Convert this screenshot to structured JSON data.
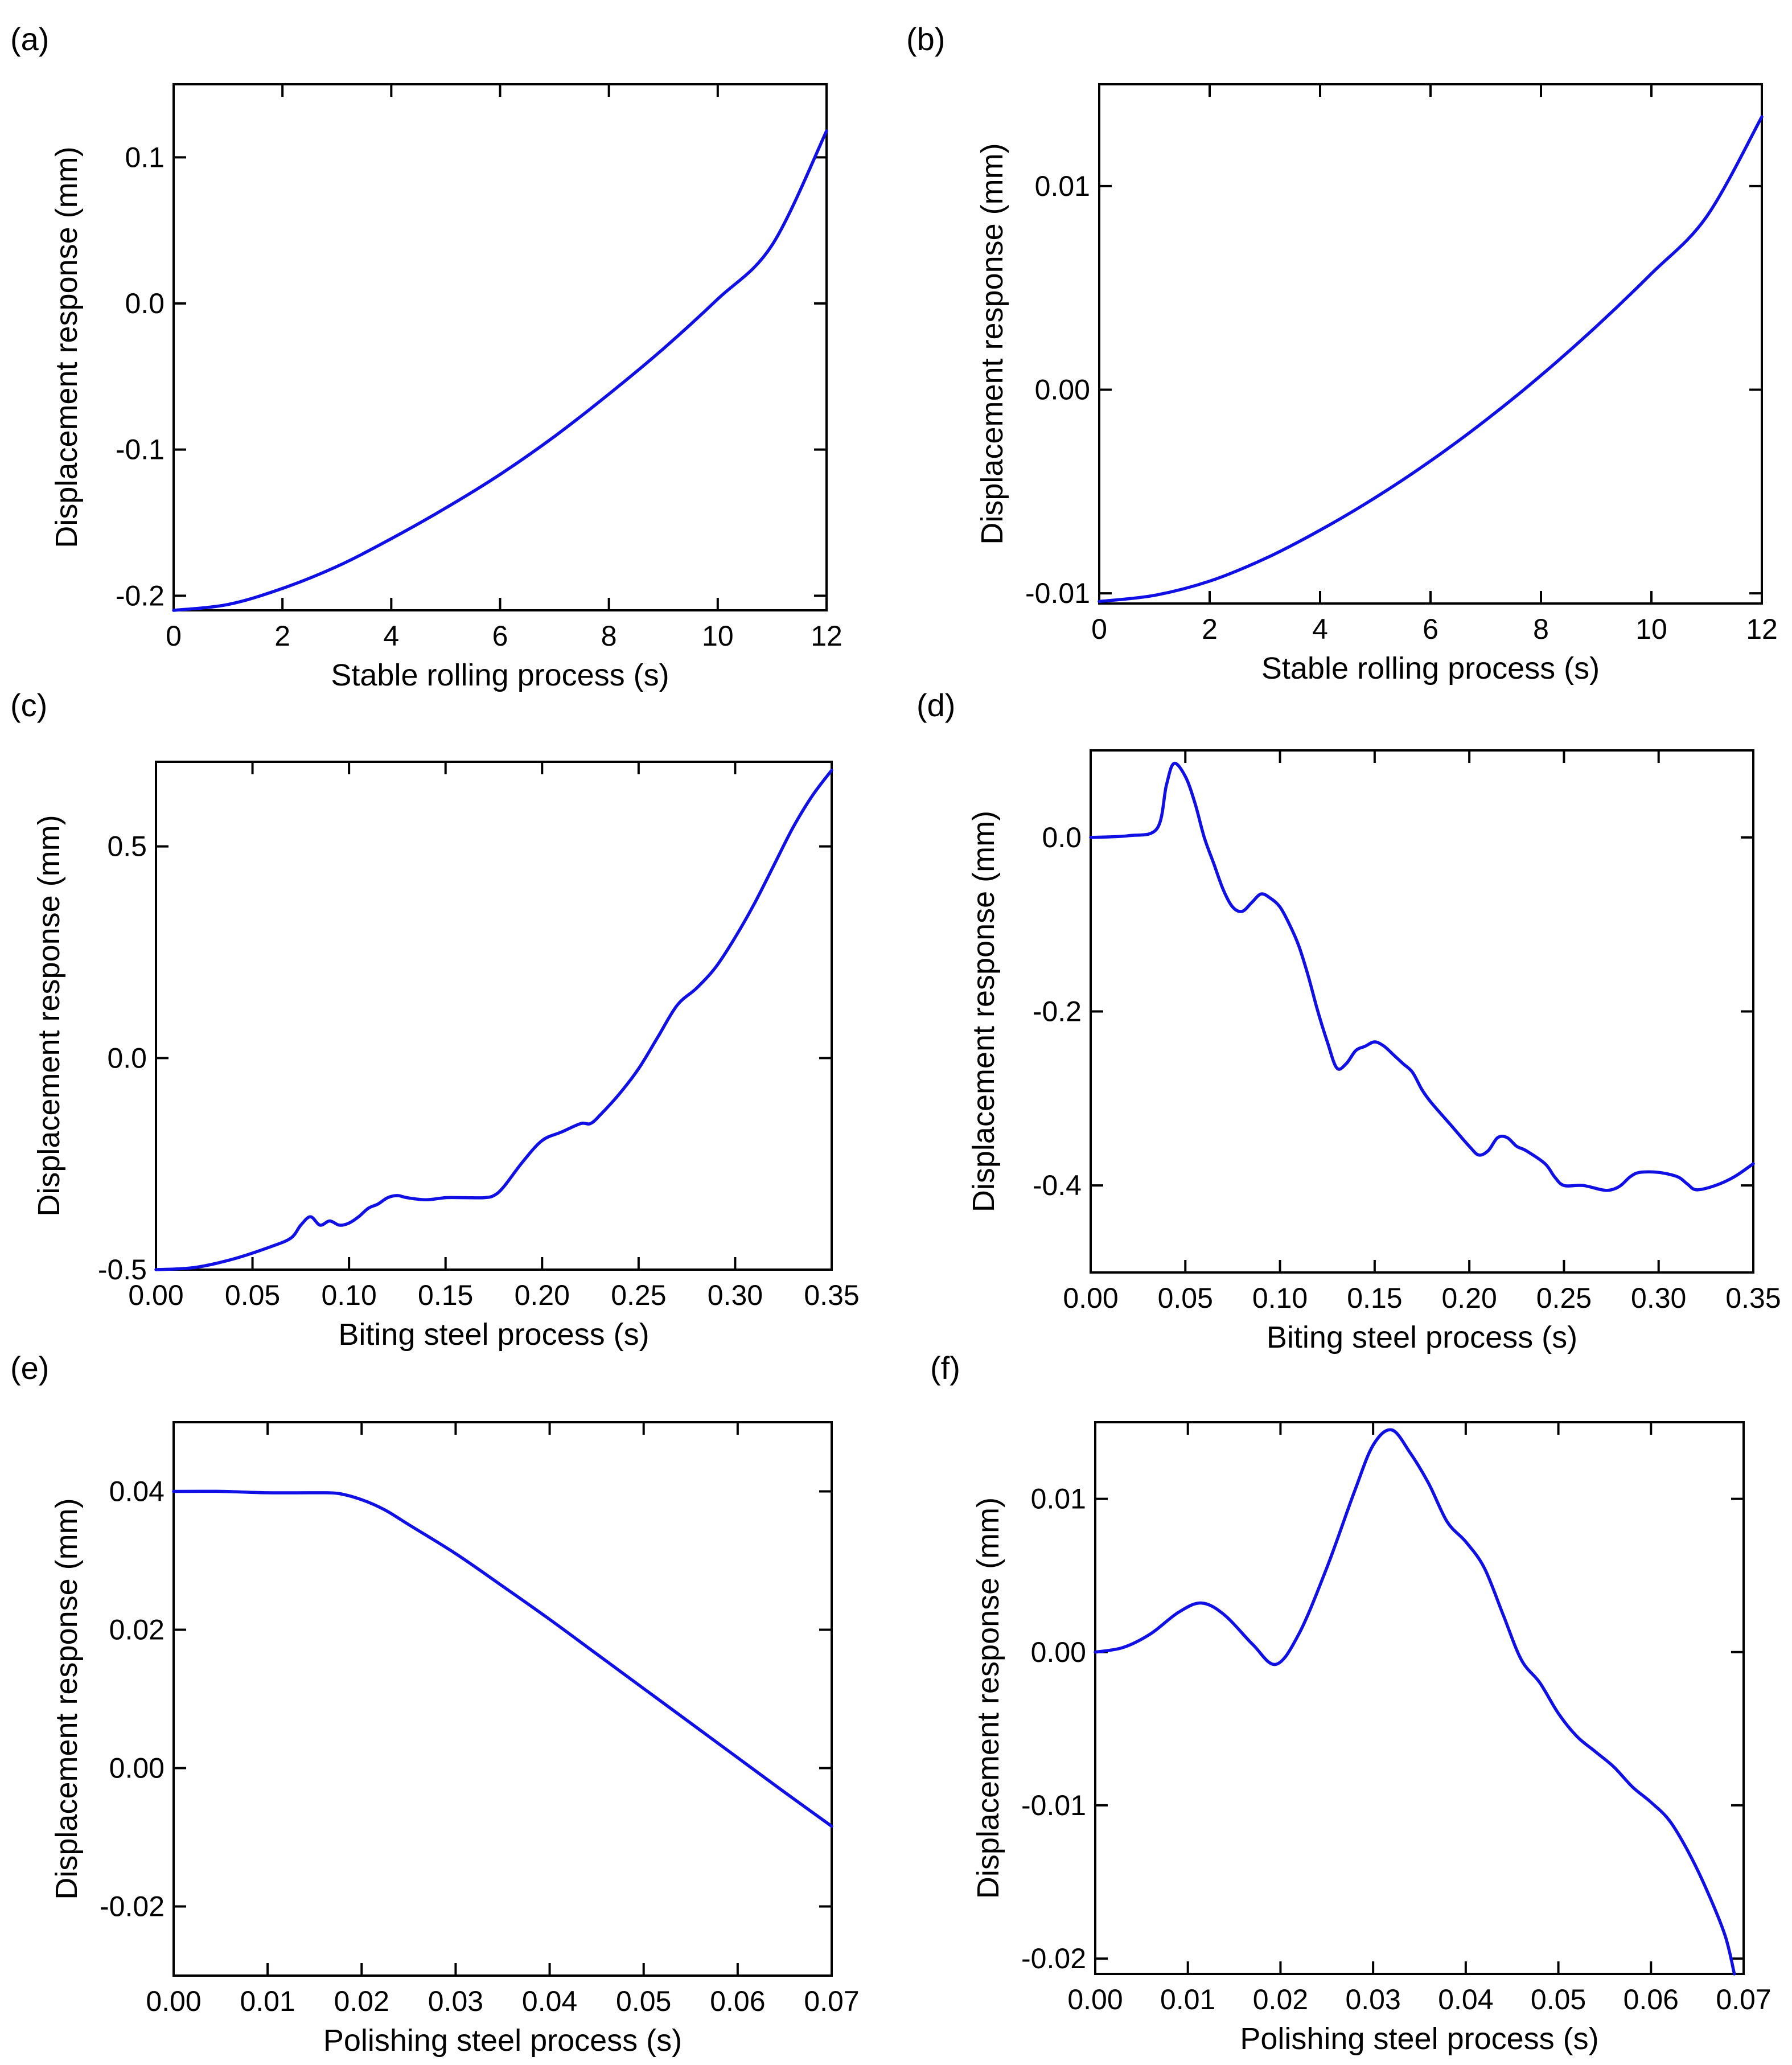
{
  "colors": {
    "series": "#1010e6",
    "axis": "#000000",
    "background": "#ffffff"
  },
  "chart_data": [
    {
      "panel": "(a)",
      "type": "line",
      "xlabel": "Stable rolling process (s)",
      "ylabel": "Displacement response (mm)",
      "xlim": [
        0,
        12
      ],
      "ylim": [
        -0.21,
        0.15
      ],
      "xticks": [
        0,
        2,
        4,
        6,
        8,
        10,
        12
      ],
      "xtick_labels": [
        "0",
        "2",
        "4",
        "6",
        "8",
        "10",
        "12"
      ],
      "yticks": [
        -0.2,
        -0.1,
        0.0,
        0.1
      ],
      "ytick_labels": [
        "-0.2",
        "-0.1",
        "0.0",
        "0.1"
      ],
      "series": [
        {
          "name": "displacement",
          "x": [
            0,
            1,
            2,
            3,
            4,
            5,
            6,
            7,
            8,
            9,
            10,
            11,
            12
          ],
          "y": [
            -0.21,
            -0.206,
            -0.195,
            -0.18,
            -0.161,
            -0.14,
            -0.117,
            -0.091,
            -0.062,
            -0.031,
            0.003,
            0.04,
            0.118
          ]
        }
      ]
    },
    {
      "panel": "(b)",
      "type": "line",
      "xlabel": "Stable rolling process (s)",
      "ylabel": "Displacement response (mm)",
      "xlim": [
        0,
        12
      ],
      "ylim": [
        -0.0105,
        0.015
      ],
      "xticks": [
        0,
        2,
        4,
        6,
        8,
        10,
        12
      ],
      "xtick_labels": [
        "0",
        "2",
        "4",
        "6",
        "8",
        "10",
        "12"
      ],
      "yticks": [
        -0.01,
        0.0,
        0.01
      ],
      "ytick_labels": [
        "-0.01",
        "0.00",
        "0.01"
      ],
      "series": [
        {
          "name": "displacement",
          "x": [
            0,
            1,
            2,
            3,
            4,
            5,
            6,
            7,
            8,
            9,
            10,
            11,
            12
          ],
          "y": [
            -0.0104,
            -0.0101,
            -0.0094,
            -0.0083,
            -0.0069,
            -0.0053,
            -0.0035,
            -0.0015,
            0.0007,
            0.0031,
            0.0057,
            0.0085,
            0.0134
          ]
        }
      ]
    },
    {
      "panel": "(c)",
      "type": "line",
      "xlabel": "Biting steel process (s)",
      "ylabel": "Displacement response (mm)",
      "xlim": [
        0,
        0.35
      ],
      "ylim": [
        -0.5,
        0.7
      ],
      "xticks": [
        0,
        0.05,
        0.1,
        0.15,
        0.2,
        0.25,
        0.3,
        0.35
      ],
      "xtick_labels": [
        "0.00",
        "0.05",
        "0.10",
        "0.15",
        "0.20",
        "0.25",
        "0.30",
        "0.35"
      ],
      "yticks": [
        -0.5,
        0.0,
        0.5
      ],
      "ytick_labels": [
        "-0.5",
        "0.0",
        "0.5"
      ],
      "series": [
        {
          "name": "displacement",
          "x": [
            0,
            0.02,
            0.04,
            0.06,
            0.07,
            0.075,
            0.08,
            0.085,
            0.09,
            0.095,
            0.1,
            0.105,
            0.11,
            0.115,
            0.12,
            0.125,
            0.13,
            0.14,
            0.15,
            0.16,
            0.17,
            0.175,
            0.18,
            0.19,
            0.2,
            0.21,
            0.22,
            0.225,
            0.23,
            0.24,
            0.25,
            0.26,
            0.27,
            0.28,
            0.29,
            0.3,
            0.31,
            0.32,
            0.33,
            0.34,
            0.35
          ],
          "y": [
            -0.5,
            -0.495,
            -0.475,
            -0.445,
            -0.425,
            -0.395,
            -0.375,
            -0.395,
            -0.385,
            -0.395,
            -0.39,
            -0.375,
            -0.355,
            -0.345,
            -0.33,
            -0.325,
            -0.33,
            -0.335,
            -0.33,
            -0.33,
            -0.33,
            -0.325,
            -0.305,
            -0.245,
            -0.195,
            -0.175,
            -0.155,
            -0.155,
            -0.135,
            -0.085,
            -0.025,
            0.05,
            0.125,
            0.165,
            0.215,
            0.285,
            0.365,
            0.455,
            0.545,
            0.62,
            0.68
          ]
        }
      ]
    },
    {
      "panel": "(d)",
      "type": "line",
      "xlabel": "Biting steel process (s)",
      "ylabel": "Displacement response (mm)",
      "xlim": [
        0,
        0.35
      ],
      "ylim": [
        -0.5,
        0.1
      ],
      "xticks": [
        0,
        0.05,
        0.1,
        0.15,
        0.2,
        0.25,
        0.3,
        0.35
      ],
      "xtick_labels": [
        "0.00",
        "0.05",
        "0.10",
        "0.15",
        "0.20",
        "0.25",
        "0.30",
        "0.35"
      ],
      "yticks": [
        -0.4,
        -0.2,
        0.0
      ],
      "ytick_labels": [
        "-0.4",
        "-0.2",
        "0.0"
      ],
      "series": [
        {
          "name": "displacement",
          "x": [
            0,
            0.02,
            0.035,
            0.04,
            0.044,
            0.05,
            0.055,
            0.06,
            0.065,
            0.07,
            0.075,
            0.08,
            0.085,
            0.09,
            0.095,
            0.1,
            0.105,
            0.11,
            0.115,
            0.12,
            0.125,
            0.13,
            0.135,
            0.14,
            0.145,
            0.15,
            0.155,
            0.16,
            0.165,
            0.17,
            0.175,
            0.18,
            0.19,
            0.2,
            0.205,
            0.21,
            0.215,
            0.22,
            0.225,
            0.23,
            0.24,
            0.245,
            0.25,
            0.26,
            0.27,
            0.275,
            0.28,
            0.285,
            0.29,
            0.3,
            0.31,
            0.315,
            0.32,
            0.33,
            0.34,
            0.35
          ],
          "y": [
            0.0,
            0.002,
            0.01,
            0.06,
            0.085,
            0.07,
            0.04,
            0.0,
            -0.03,
            -0.06,
            -0.08,
            -0.085,
            -0.075,
            -0.065,
            -0.07,
            -0.08,
            -0.1,
            -0.125,
            -0.16,
            -0.2,
            -0.235,
            -0.265,
            -0.26,
            -0.245,
            -0.24,
            -0.235,
            -0.24,
            -0.25,
            -0.26,
            -0.27,
            -0.29,
            -0.305,
            -0.33,
            -0.355,
            -0.365,
            -0.36,
            -0.345,
            -0.345,
            -0.355,
            -0.36,
            -0.375,
            -0.39,
            -0.4,
            -0.4,
            -0.405,
            -0.405,
            -0.4,
            -0.39,
            -0.385,
            -0.385,
            -0.39,
            -0.398,
            -0.405,
            -0.4,
            -0.39,
            -0.375
          ]
        }
      ]
    },
    {
      "panel": "(e)",
      "type": "line",
      "xlabel": "Polishing steel process (s)",
      "ylabel": "Displacement response (mm)",
      "xlim": [
        0,
        0.07
      ],
      "ylim": [
        -0.03,
        0.05
      ],
      "xticks": [
        0,
        0.01,
        0.02,
        0.03,
        0.04,
        0.05,
        0.06,
        0.07
      ],
      "xtick_labels": [
        "0.00",
        "0.01",
        "0.02",
        "0.03",
        "0.04",
        "0.05",
        "0.06",
        "0.07"
      ],
      "yticks": [
        -0.02,
        0.0,
        0.02,
        0.04
      ],
      "ytick_labels": [
        "-0.02",
        "0.00",
        "0.02",
        "0.04"
      ],
      "series": [
        {
          "name": "displacement",
          "x": [
            0,
            0.005,
            0.01,
            0.015,
            0.0175,
            0.02,
            0.0225,
            0.025,
            0.03,
            0.035,
            0.04,
            0.045,
            0.05,
            0.055,
            0.06,
            0.065,
            0.07
          ],
          "y": [
            0.04,
            0.04,
            0.0398,
            0.0398,
            0.0397,
            0.0388,
            0.0373,
            0.0352,
            0.031,
            0.0263,
            0.0215,
            0.0165,
            0.0115,
            0.0065,
            0.0015,
            -0.0035,
            -0.0084
          ]
        }
      ]
    },
    {
      "panel": "(f)",
      "type": "line",
      "xlabel": "Polishing steel process (s)",
      "ylabel": "Displacement response (mm)",
      "xlim": [
        0,
        0.07
      ],
      "ylim": [
        -0.021,
        0.015
      ],
      "xticks": [
        0,
        0.01,
        0.02,
        0.03,
        0.04,
        0.05,
        0.06,
        0.07
      ],
      "xtick_labels": [
        "0.00",
        "0.01",
        "0.02",
        "0.03",
        "0.04",
        "0.05",
        "0.06",
        "0.07"
      ],
      "yticks": [
        -0.02,
        -0.01,
        0.0,
        0.01
      ],
      "ytick_labels": [
        "-0.02",
        "-0.01",
        "0.00",
        "0.01"
      ],
      "series": [
        {
          "name": "displacement",
          "x": [
            0,
            0.003,
            0.006,
            0.009,
            0.0115,
            0.014,
            0.017,
            0.0195,
            0.022,
            0.025,
            0.028,
            0.03,
            0.032,
            0.034,
            0.036,
            0.038,
            0.04,
            0.042,
            0.044,
            0.046,
            0.048,
            0.05,
            0.052,
            0.054,
            0.056,
            0.058,
            0.06,
            0.062,
            0.064,
            0.066,
            0.068,
            0.069
          ],
          "y": [
            0.0,
            0.0003,
            0.0012,
            0.0026,
            0.0032,
            0.0024,
            0.0005,
            -0.0008,
            0.0012,
            0.0055,
            0.0105,
            0.0135,
            0.0145,
            0.013,
            0.011,
            0.0085,
            0.0072,
            0.0055,
            0.0025,
            -0.0005,
            -0.002,
            -0.004,
            -0.0055,
            -0.0065,
            -0.0075,
            -0.0088,
            -0.0098,
            -0.011,
            -0.013,
            -0.0155,
            -0.0185,
            -0.021
          ]
        }
      ]
    }
  ]
}
